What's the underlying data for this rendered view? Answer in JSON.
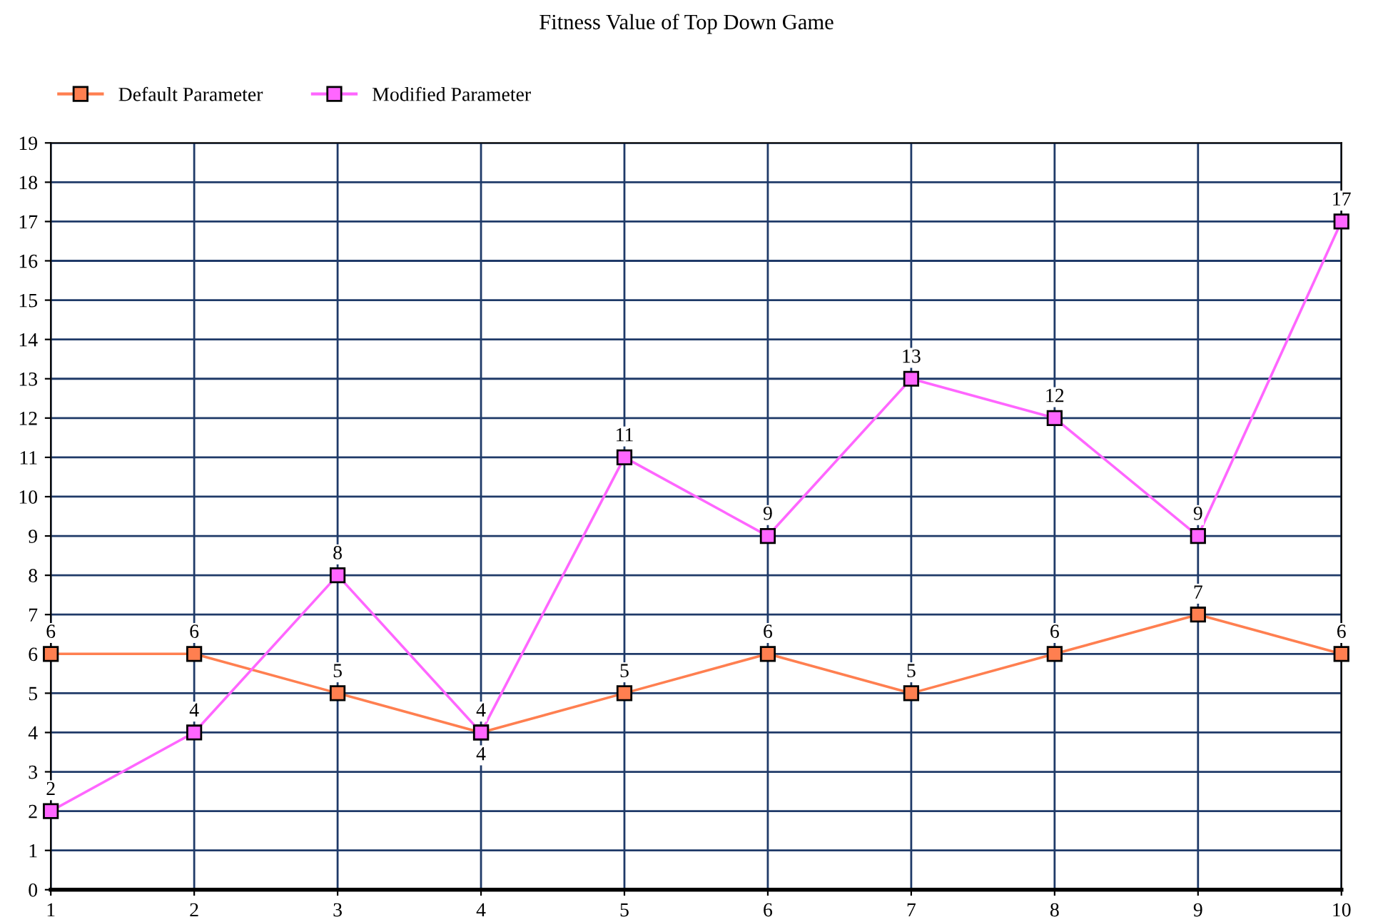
{
  "chart_data": {
    "type": "line",
    "title": "Fitness Value of Top Down Game",
    "x": [
      1,
      2,
      3,
      4,
      5,
      6,
      7,
      8,
      9,
      10
    ],
    "series": [
      {
        "name": "Default Parameter",
        "color": "#ff7f50",
        "values": [
          6,
          6,
          5,
          4,
          5,
          6,
          5,
          6,
          7,
          6
        ]
      },
      {
        "name": "Modified Parameter",
        "color": "#ff66ff",
        "values": [
          2,
          4,
          8,
          4,
          11,
          9,
          13,
          12,
          9,
          17
        ]
      }
    ],
    "xlim": [
      1,
      10
    ],
    "xticks": [
      1,
      2,
      3,
      4,
      5,
      6,
      7,
      8,
      9,
      10
    ],
    "ylim": [
      0,
      19
    ],
    "yticks": [
      0,
      1,
      2,
      3,
      4,
      5,
      6,
      7,
      8,
      9,
      10,
      11,
      12,
      13,
      14,
      15,
      16,
      17,
      18,
      19
    ],
    "grid": true,
    "legend": "top left",
    "marker": "square",
    "line_style": "solid",
    "data_labels": true
  }
}
